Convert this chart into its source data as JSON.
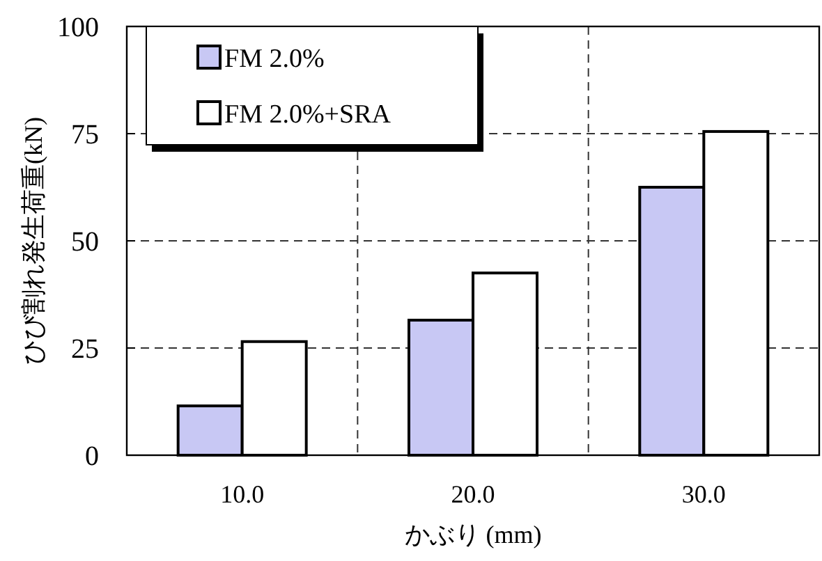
{
  "chart_data": {
    "type": "bar",
    "xlabel": "かぶり (mm)",
    "ylabel": "ひび割れ発生荷重(kN)",
    "categories": [
      "10.0",
      "20.0",
      "30.0"
    ],
    "series": [
      {
        "name": "FM 2.0%",
        "color": "#c8c8f4",
        "values": [
          11.5,
          31.5,
          62.5
        ]
      },
      {
        "name": "FM 2.0%+SRA",
        "color": "#ffffff",
        "values": [
          26.5,
          42.5,
          75.5
        ]
      }
    ],
    "ylim": [
      0,
      100
    ],
    "yticks": [
      0,
      25,
      50,
      75,
      100
    ],
    "grid": true,
    "legend": "top left"
  }
}
